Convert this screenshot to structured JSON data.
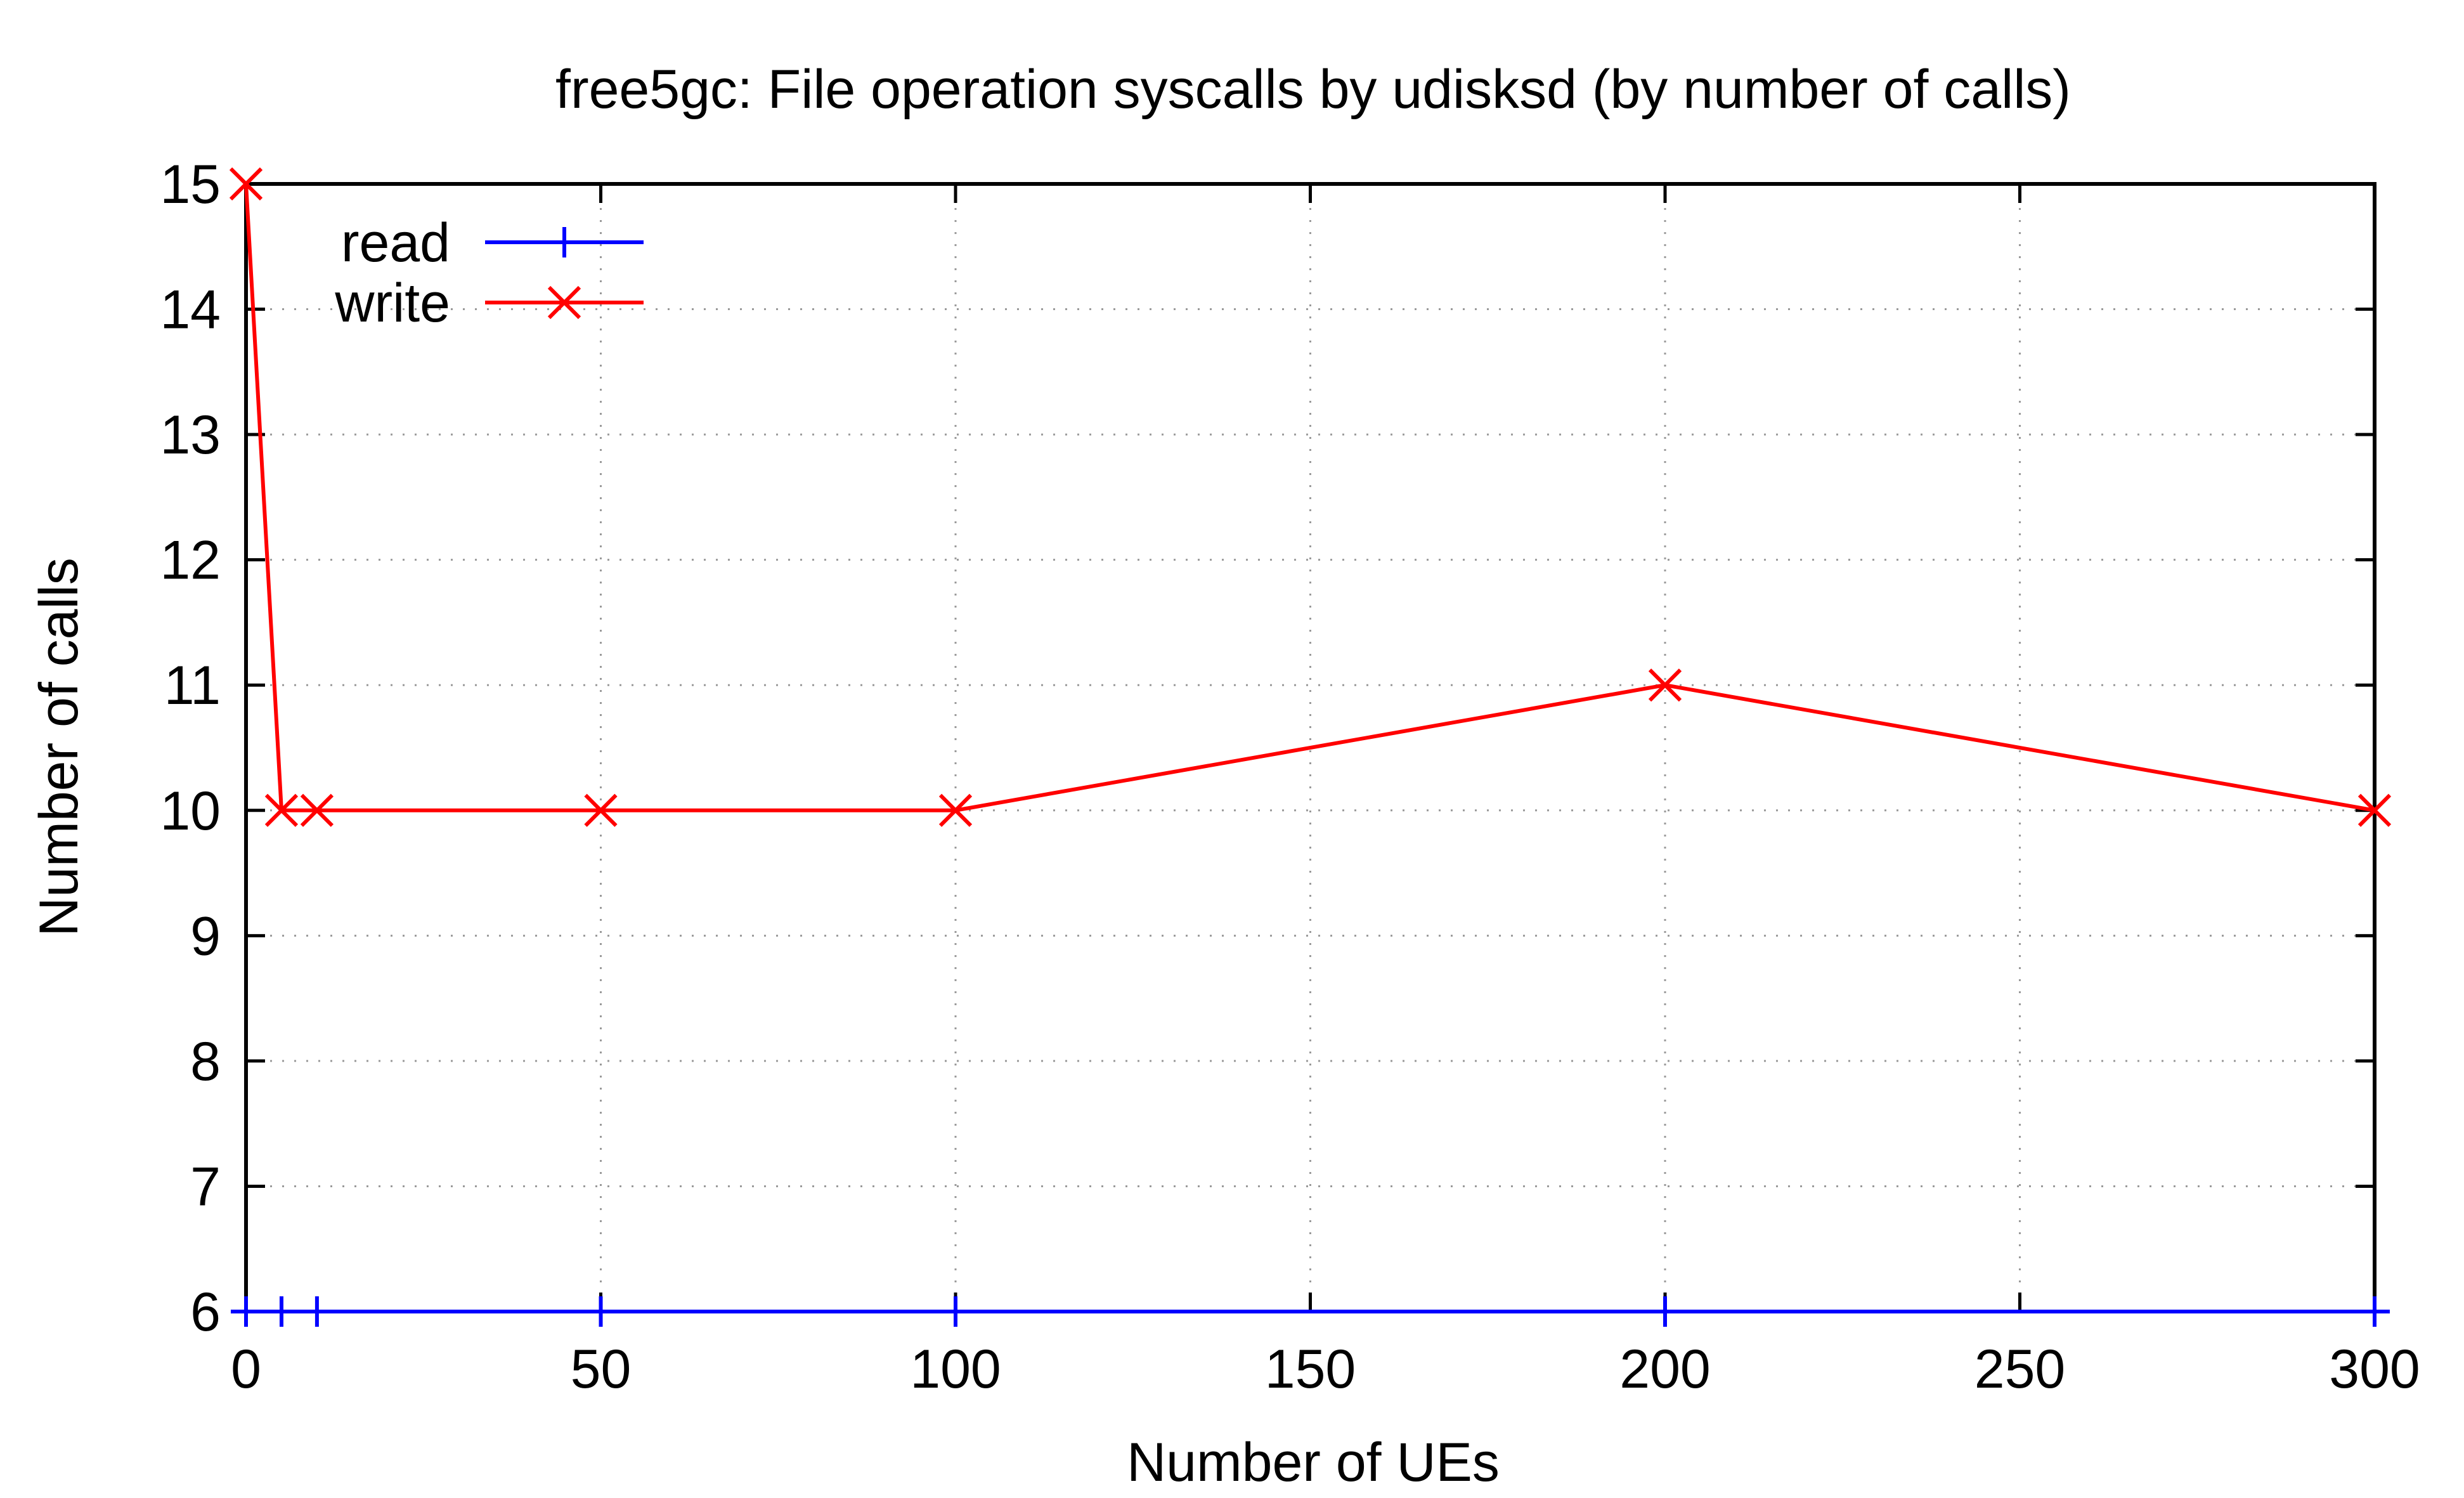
{
  "chart_data": {
    "type": "line",
    "title": "free5gc: File operation syscalls by udisksd (by number of calls)",
    "xlabel": "Number of UEs",
    "ylabel": "Number of calls",
    "xlim": [
      0,
      300
    ],
    "ylim": [
      6,
      15
    ],
    "xticks": [
      0,
      50,
      100,
      150,
      200,
      250,
      300
    ],
    "yticks": [
      6,
      7,
      8,
      9,
      10,
      11,
      12,
      13,
      14,
      15
    ],
    "grid": true,
    "legend_position": "top-left",
    "series": [
      {
        "name": "read",
        "color": "#0000ff",
        "marker": "plus",
        "x": [
          0,
          5,
          10,
          50,
          100,
          200,
          300
        ],
        "y": [
          6,
          6,
          6,
          6,
          6,
          6,
          6
        ]
      },
      {
        "name": "write",
        "color": "#ff0000",
        "marker": "cross",
        "x": [
          0,
          5,
          10,
          50,
          100,
          200,
          300
        ],
        "y": [
          15,
          10,
          10,
          10,
          10,
          11,
          10
        ]
      }
    ]
  }
}
